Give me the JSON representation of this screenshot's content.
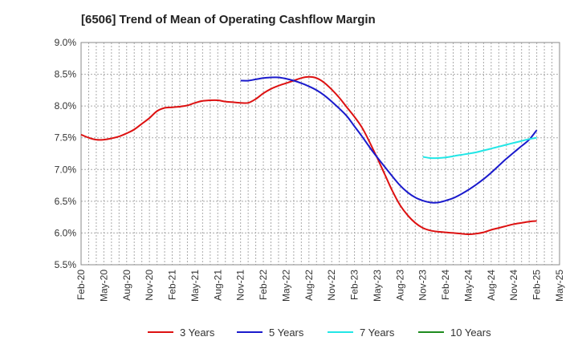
{
  "chart_data": {
    "type": "line",
    "title": "[6506]  Trend of Mean of Operating Cashflow Margin",
    "xlabel": "",
    "ylabel": "",
    "ylim": [
      5.5,
      9.0
    ],
    "y_ticks": [
      "9.0%",
      "8.5%",
      "8.0%",
      "7.5%",
      "7.0%",
      "6.5%",
      "6.0%",
      "5.5%"
    ],
    "x_ticks": [
      "Feb-20",
      "May-20",
      "Aug-20",
      "Nov-20",
      "Feb-21",
      "May-21",
      "Aug-21",
      "Nov-21",
      "Feb-22",
      "May-22",
      "Aug-22",
      "Nov-22",
      "Feb-23",
      "May-23",
      "Aug-23",
      "Nov-23",
      "Feb-24",
      "May-24",
      "Aug-24",
      "Nov-24",
      "Feb-25",
      "May-25"
    ],
    "grid": true,
    "legend_position": "bottom",
    "series": [
      {
        "name": "3 Years",
        "color": "#dd1111",
        "values": [
          [
            "Feb-20",
            7.55
          ],
          [
            "Mar-20",
            7.5
          ],
          [
            "Apr-20",
            7.47
          ],
          [
            "May-20",
            7.47
          ],
          [
            "Jun-20",
            7.49
          ],
          [
            "Jul-20",
            7.52
          ],
          [
            "Aug-20",
            7.57
          ],
          [
            "Sep-20",
            7.63
          ],
          [
            "Oct-20",
            7.72
          ],
          [
            "Nov-20",
            7.81
          ],
          [
            "Dec-20",
            7.92
          ],
          [
            "Jan-21",
            7.97
          ],
          [
            "Feb-21",
            7.98
          ],
          [
            "Mar-21",
            7.99
          ],
          [
            "Apr-21",
            8.01
          ],
          [
            "May-21",
            8.05
          ],
          [
            "Jun-21",
            8.08
          ],
          [
            "Jul-21",
            8.09
          ],
          [
            "Aug-21",
            8.09
          ],
          [
            "Sep-21",
            8.07
          ],
          [
            "Oct-21",
            8.06
          ],
          [
            "Nov-21",
            8.05
          ],
          [
            "Dec-21",
            8.05
          ],
          [
            "Jan-22",
            8.11
          ],
          [
            "Feb-22",
            8.2
          ],
          [
            "Mar-22",
            8.27
          ],
          [
            "Apr-22",
            8.32
          ],
          [
            "May-22",
            8.36
          ],
          [
            "Jun-22",
            8.4
          ],
          [
            "Jul-22",
            8.44
          ],
          [
            "Aug-22",
            8.46
          ],
          [
            "Sep-22",
            8.44
          ],
          [
            "Oct-22",
            8.37
          ],
          [
            "Nov-22",
            8.26
          ],
          [
            "Dec-22",
            8.13
          ],
          [
            "Jan-23",
            7.98
          ],
          [
            "Feb-23",
            7.83
          ],
          [
            "Mar-23",
            7.66
          ],
          [
            "Apr-23",
            7.43
          ],
          [
            "May-23",
            7.18
          ],
          [
            "Jun-23",
            6.92
          ],
          [
            "Jul-23",
            6.66
          ],
          [
            "Aug-23",
            6.44
          ],
          [
            "Sep-23",
            6.28
          ],
          [
            "Oct-23",
            6.16
          ],
          [
            "Nov-23",
            6.08
          ],
          [
            "Dec-23",
            6.04
          ],
          [
            "Jan-24",
            6.02
          ],
          [
            "Feb-24",
            6.01
          ],
          [
            "Mar-24",
            6.0
          ],
          [
            "Apr-24",
            5.99
          ],
          [
            "May-24",
            5.98
          ],
          [
            "Jun-24",
            5.99
          ],
          [
            "Jul-24",
            6.01
          ],
          [
            "Aug-24",
            6.05
          ],
          [
            "Sep-24",
            6.08
          ],
          [
            "Oct-24",
            6.11
          ],
          [
            "Nov-24",
            6.14
          ],
          [
            "Dec-24",
            6.16
          ],
          [
            "Jan-25",
            6.18
          ],
          [
            "Feb-25",
            6.19
          ]
        ]
      },
      {
        "name": "5 Years",
        "color": "#1a1acc",
        "values": [
          [
            "Nov-21",
            8.4
          ],
          [
            "Dec-21",
            8.4
          ],
          [
            "Jan-22",
            8.42
          ],
          [
            "Feb-22",
            8.44
          ],
          [
            "Mar-22",
            8.45
          ],
          [
            "Apr-22",
            8.45
          ],
          [
            "May-22",
            8.43
          ],
          [
            "Jun-22",
            8.4
          ],
          [
            "Jul-22",
            8.36
          ],
          [
            "Aug-22",
            8.31
          ],
          [
            "Sep-22",
            8.25
          ],
          [
            "Oct-22",
            8.17
          ],
          [
            "Nov-22",
            8.07
          ],
          [
            "Dec-22",
            7.96
          ],
          [
            "Jan-23",
            7.84
          ],
          [
            "Feb-23",
            7.68
          ],
          [
            "Mar-23",
            7.52
          ],
          [
            "Apr-23",
            7.35
          ],
          [
            "May-23",
            7.19
          ],
          [
            "Jun-23",
            7.04
          ],
          [
            "Jul-23",
            6.89
          ],
          [
            "Aug-23",
            6.75
          ],
          [
            "Sep-23",
            6.64
          ],
          [
            "Oct-23",
            6.56
          ],
          [
            "Nov-23",
            6.51
          ],
          [
            "Dec-23",
            6.48
          ],
          [
            "Jan-24",
            6.48
          ],
          [
            "Feb-24",
            6.51
          ],
          [
            "Mar-24",
            6.55
          ],
          [
            "Apr-24",
            6.61
          ],
          [
            "May-24",
            6.68
          ],
          [
            "Jun-24",
            6.76
          ],
          [
            "Jul-24",
            6.85
          ],
          [
            "Aug-24",
            6.95
          ],
          [
            "Sep-24",
            7.06
          ],
          [
            "Oct-24",
            7.17
          ],
          [
            "Nov-24",
            7.27
          ],
          [
            "Dec-24",
            7.37
          ],
          [
            "Jan-25",
            7.47
          ],
          [
            "Feb-25",
            7.62
          ]
        ]
      },
      {
        "name": "7 Years",
        "color": "#22e6e6",
        "values": [
          [
            "Nov-23",
            7.2
          ],
          [
            "Dec-23",
            7.18
          ],
          [
            "Jan-24",
            7.18
          ],
          [
            "Feb-24",
            7.19
          ],
          [
            "Mar-24",
            7.21
          ],
          [
            "Apr-24",
            7.23
          ],
          [
            "May-24",
            7.25
          ],
          [
            "Jun-24",
            7.27
          ],
          [
            "Jul-24",
            7.3
          ],
          [
            "Aug-24",
            7.33
          ],
          [
            "Sep-24",
            7.36
          ],
          [
            "Oct-24",
            7.39
          ],
          [
            "Nov-24",
            7.42
          ],
          [
            "Dec-24",
            7.45
          ],
          [
            "Jan-25",
            7.48
          ],
          [
            "Feb-25",
            7.5
          ]
        ]
      },
      {
        "name": "10 Years",
        "color": "#1e8c1e",
        "values": []
      }
    ]
  }
}
